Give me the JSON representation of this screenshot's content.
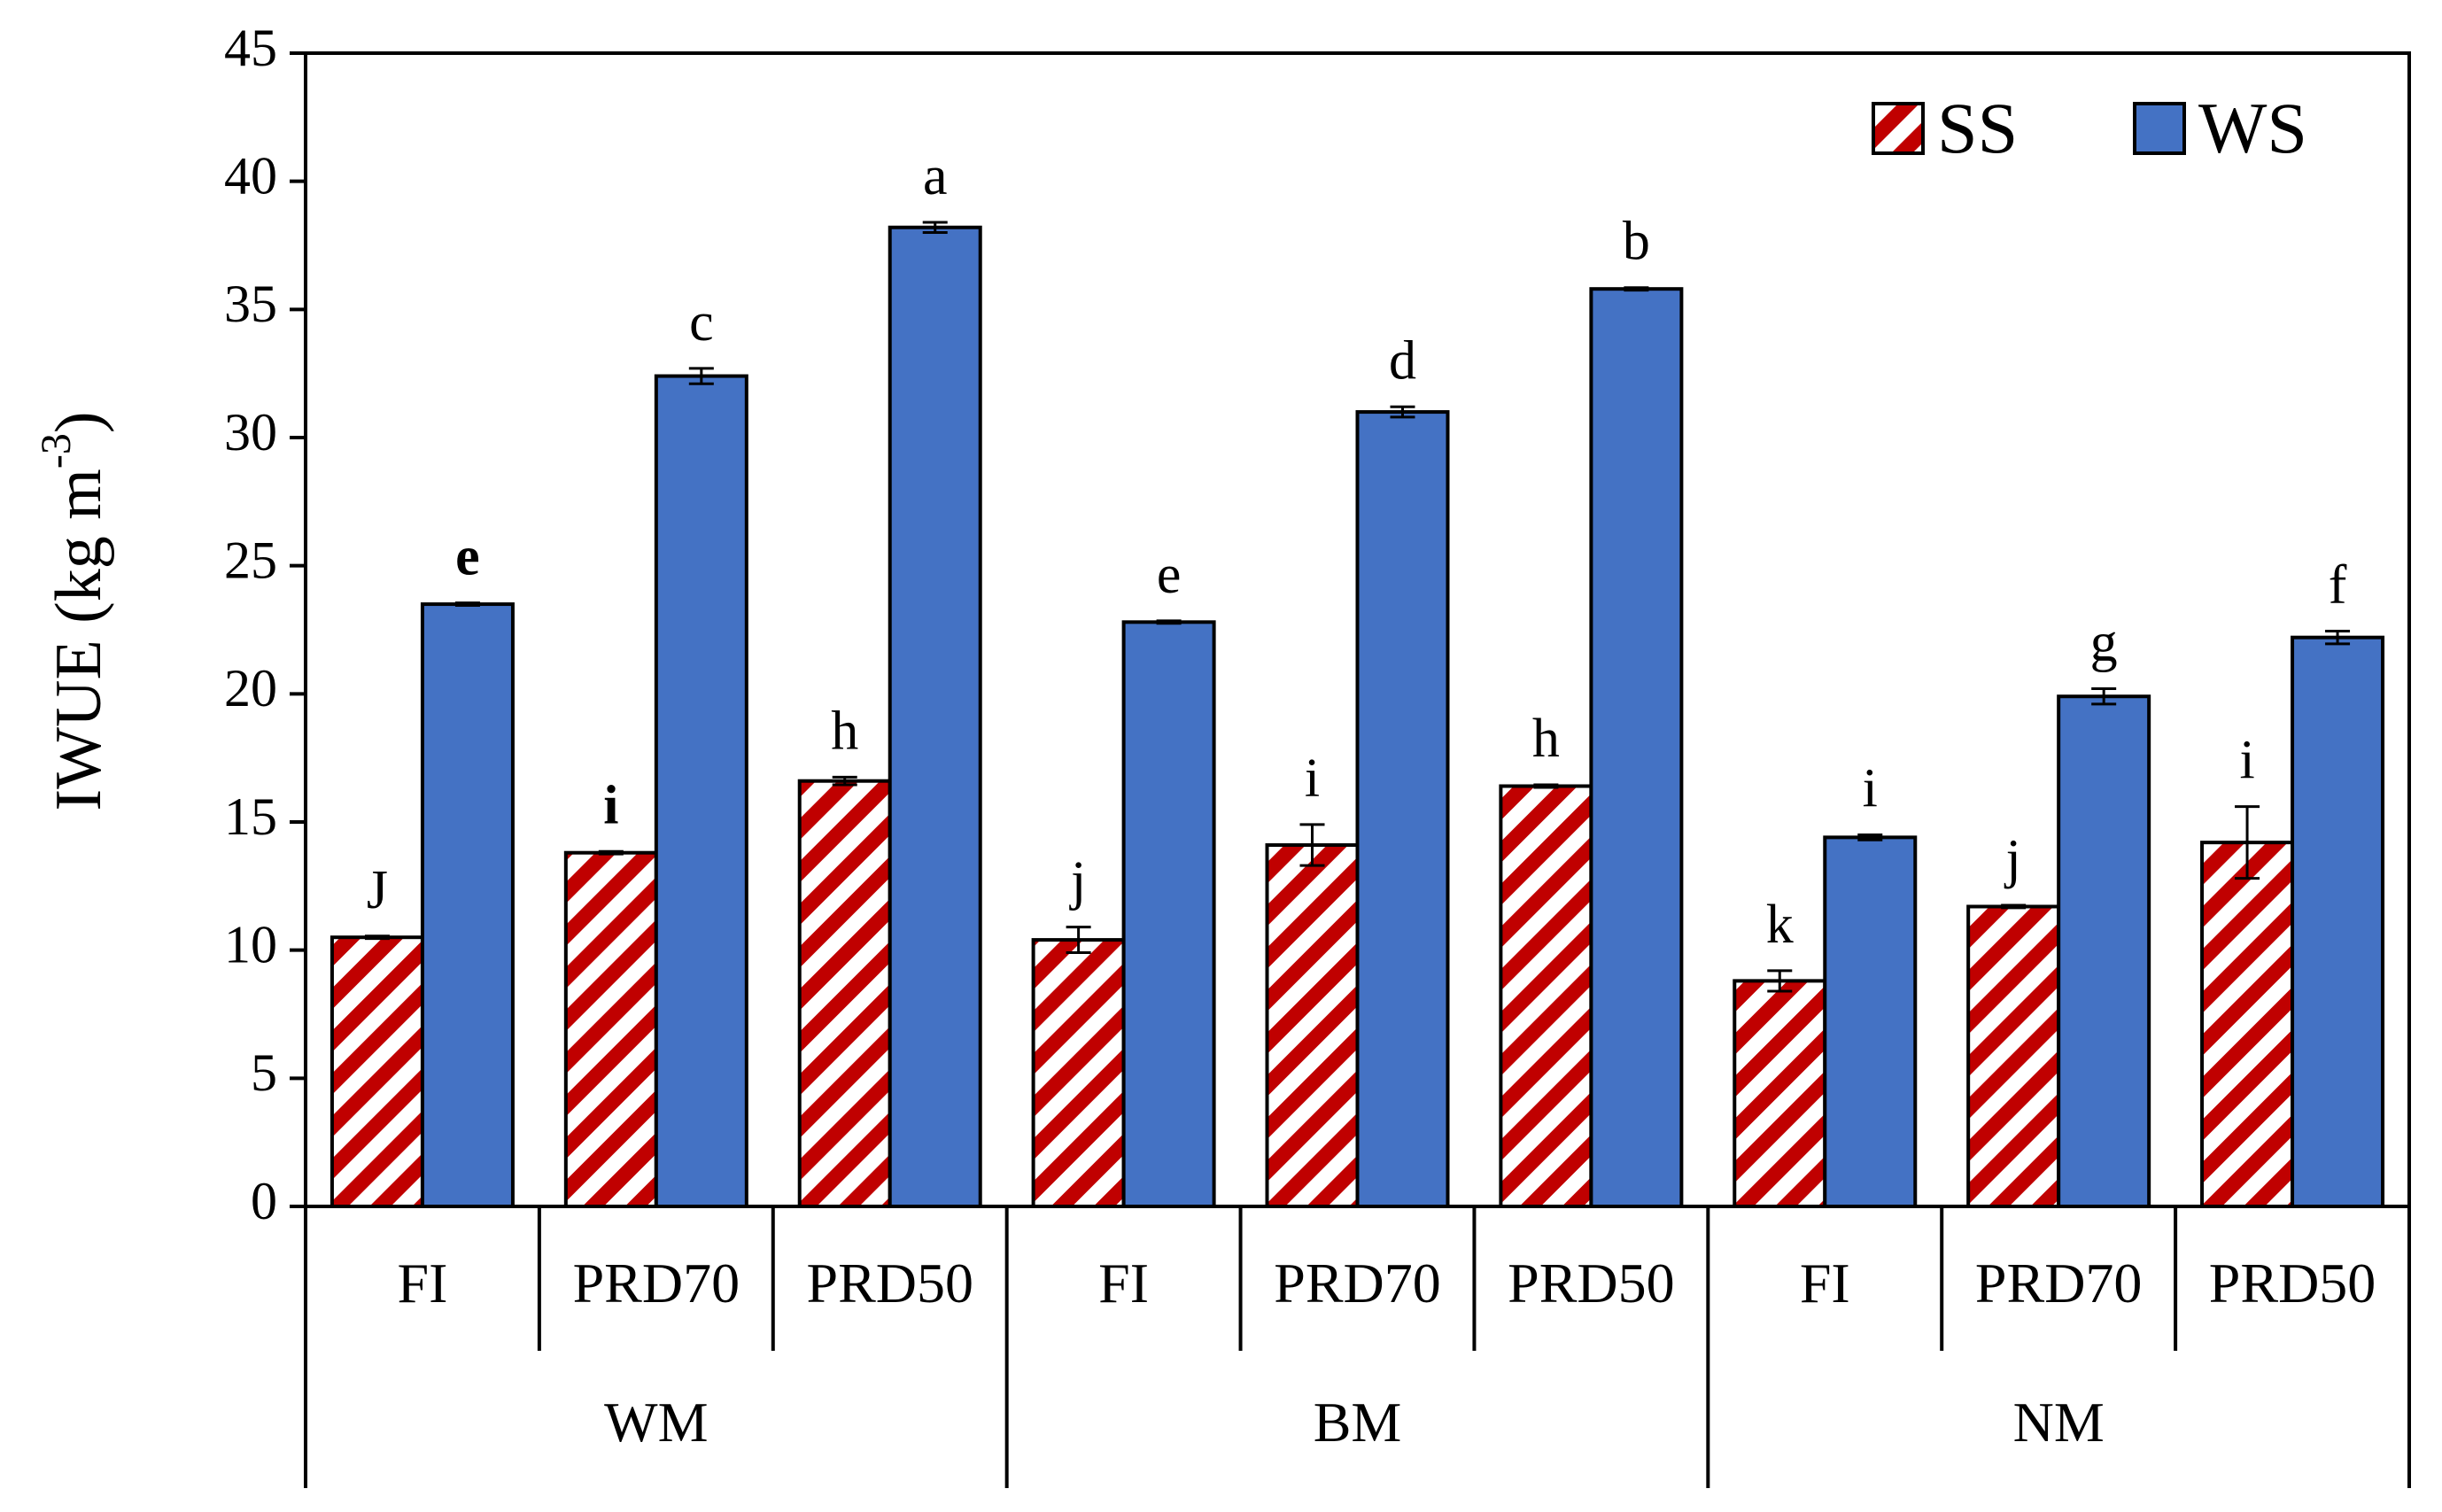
{
  "chart_data": {
    "type": "bar",
    "title": "",
    "xlabel": "",
    "ylabel": "IWUE (kg m",
    "ylabel_superscript": "-3",
    "ylabel_close": ")",
    "ylim": [
      0,
      45
    ],
    "yticks": [
      "0",
      "5",
      "10",
      "15",
      "20",
      "25",
      "30",
      "35",
      "40",
      "45"
    ],
    "grid": false,
    "legend_position": "top-right",
    "groups": [
      {
        "name": "WM",
        "categories": [
          "FI",
          "PRD70",
          "PRD50"
        ]
      },
      {
        "name": "BM",
        "categories": [
          "FI",
          "PRD70",
          "PRD50"
        ]
      },
      {
        "name": "NM",
        "categories": [
          "FI",
          "PRD70",
          "PRD50"
        ]
      }
    ],
    "categories": [
      "FI",
      "PRD70",
      "PRD50",
      "FI",
      "PRD70",
      "PRD50",
      "FI",
      "PRD70",
      "PRD50"
    ],
    "series": [
      {
        "name": "SS",
        "fill": "hatched",
        "color": "#c00000",
        "values": [
          10.5,
          13.8,
          16.6,
          10.4,
          14.1,
          16.4,
          8.8,
          11.7,
          14.2
        ],
        "errors": [
          0.05,
          0.05,
          0.15,
          0.5,
          0.8,
          0.05,
          0.4,
          0.05,
          1.4
        ],
        "letters": [
          "J",
          "i",
          "h",
          "j",
          "i",
          "h",
          "k",
          "j",
          "i"
        ],
        "letter_bold": [
          false,
          true,
          false,
          false,
          false,
          false,
          false,
          false,
          false
        ]
      },
      {
        "name": "WS",
        "fill": "solid",
        "color": "#4472c4",
        "values": [
          23.5,
          32.4,
          38.2,
          22.8,
          31.0,
          35.8,
          14.4,
          19.9,
          22.2
        ],
        "errors": [
          0.05,
          0.3,
          0.2,
          0.05,
          0.2,
          0.05,
          0.1,
          0.3,
          0.25
        ],
        "letters": [
          "e",
          "c",
          "a",
          "e",
          "d",
          "b",
          "i",
          "g",
          "f"
        ],
        "letter_bold": [
          true,
          false,
          false,
          false,
          false,
          false,
          false,
          false,
          false
        ]
      }
    ]
  }
}
